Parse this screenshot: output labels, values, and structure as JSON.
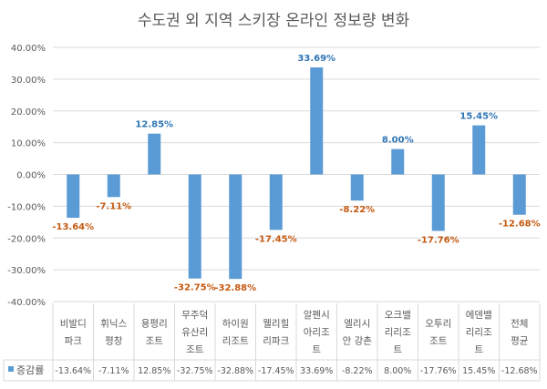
{
  "chart_data": {
    "type": "bar",
    "title": "수도권 외 지역 스키장 온라인 정보량 변화",
    "categories": [
      "비발디\n파크",
      "휘닉스\n평창",
      "용평리\n조트",
      "무주덕\n유산리\n조트",
      "하이원\n리조트",
      "웰리힐\n리파크",
      "알펜시\n아리조\n트",
      "엘리시\n안 강촌",
      "오크밸\n리리조\n트",
      "오투리\n조트",
      "에덴밸\n리리조\n트",
      "전체\n평균"
    ],
    "series": [
      {
        "name": "증감률",
        "values": [
          -13.64,
          -7.11,
          12.85,
          -32.75,
          -32.88,
          -17.45,
          33.69,
          -8.22,
          8.0,
          -17.76,
          15.45,
          -12.68
        ]
      }
    ],
    "value_labels": [
      "-13.64%",
      "-7.11%",
      "12.85%",
      "-32.75%",
      "-32.88%",
      "-17.45%",
      "33.69%",
      "-8.22%",
      "8.00%",
      "-17.76%",
      "15.45%",
      "-12.68%"
    ],
    "yticks": [
      "40.00%",
      "30.00%",
      "20.00%",
      "10.00%",
      "0.00%",
      "-10.00%",
      "-20.00%",
      "-30.00%",
      "-40.00%"
    ],
    "ylim": [
      -40,
      40
    ],
    "grid": true,
    "legend": "data-table",
    "xlabel": "",
    "ylabel": "",
    "colors": {
      "bar": "#5b9bd5",
      "positive_label": "#2e75b6",
      "negative_label": "#c55a11"
    }
  }
}
